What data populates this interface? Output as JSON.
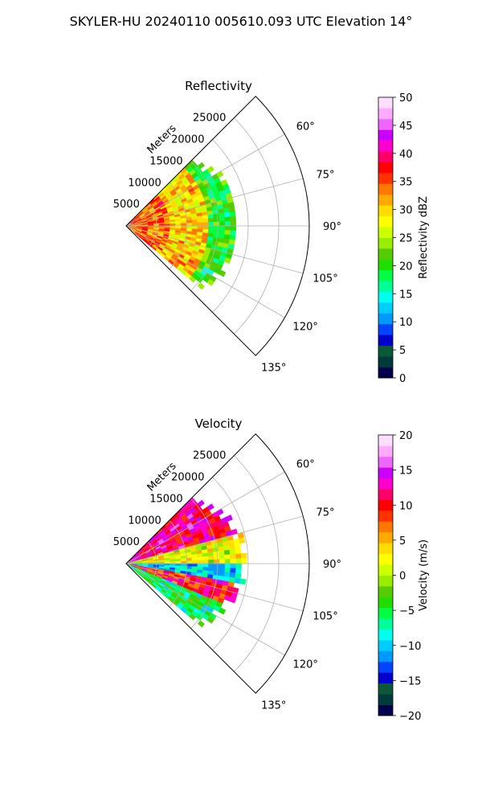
{
  "figure_title": "SKYLER-HU  20240110  005610.093 UTC Elevation 14°",
  "chart_data": [
    {
      "type": "heatmap",
      "projection": "polar-sector",
      "title": "Reflectivity",
      "range_label": "Meters",
      "range_ticks": [
        5000,
        10000,
        15000,
        20000,
        25000
      ],
      "range_tick_labels": [
        "5000",
        "10000",
        "15000",
        "20000",
        "25000"
      ],
      "rmax": 30000,
      "azimuth_range": [
        45,
        135
      ],
      "azimuth_ticks": [
        60,
        75,
        90,
        105,
        120,
        135
      ],
      "azimuth_tick_labels": [
        "60°",
        "75°",
        "90°",
        "105°",
        "120°",
        "135°"
      ],
      "grid": true,
      "colorbar": {
        "label": "Reflectivity dBZ",
        "vmin": 0,
        "vmax": 50,
        "ticks": [
          0,
          5,
          10,
          15,
          20,
          25,
          30,
          35,
          40,
          45,
          50
        ],
        "tick_labels": [
          "0",
          "5",
          "10",
          "15",
          "20",
          "25",
          "30",
          "35",
          "40",
          "45",
          "50"
        ],
        "colors": [
          "#00004d",
          "#003a3a",
          "#0a5a3a",
          "#0000cc",
          "#0044ff",
          "#0099ff",
          "#00ccff",
          "#00ffee",
          "#00ff99",
          "#00ff44",
          "#22dd00",
          "#55cc00",
          "#99ee00",
          "#ccff00",
          "#ffff00",
          "#ffdd00",
          "#ffaa00",
          "#ff7700",
          "#ff3300",
          "#ff0000",
          "#ff0066",
          "#ff00cc",
          "#cc00ff",
          "#ee66ff",
          "#ffaaff",
          "#ffddff"
        ]
      },
      "field_extent": {
        "azimuth_start": 45,
        "azimuth_end": 130,
        "r_max_approx": 18000
      },
      "approx_values_by_range_band": [
        {
          "r": [
            0,
            7000
          ],
          "value": 34
        },
        {
          "r": [
            7000,
            13000
          ],
          "value": 30
        },
        {
          "r": [
            13000,
            18000
          ],
          "value": 20
        }
      ]
    },
    {
      "type": "heatmap",
      "projection": "polar-sector",
      "title": "Velocity",
      "range_label": "Meters",
      "range_ticks": [
        5000,
        10000,
        15000,
        20000,
        25000
      ],
      "range_tick_labels": [
        "5000",
        "10000",
        "15000",
        "20000",
        "25000"
      ],
      "rmax": 30000,
      "azimuth_range": [
        45,
        135
      ],
      "azimuth_ticks": [
        60,
        75,
        90,
        105,
        120,
        135
      ],
      "azimuth_tick_labels": [
        "60°",
        "75°",
        "90°",
        "105°",
        "120°",
        "135°"
      ],
      "grid": true,
      "colorbar": {
        "label": "Velocity (m/s)",
        "vmin": -20,
        "vmax": 20,
        "ticks": [
          -20,
          -15,
          -10,
          -5,
          0,
          5,
          10,
          15,
          20
        ],
        "tick_labels": [
          "−20",
          "−15",
          "−10",
          "−5",
          "0",
          "5",
          "10",
          "15",
          "20"
        ],
        "colors": [
          "#00004d",
          "#003a3a",
          "#0a5a3a",
          "#0000cc",
          "#0044ff",
          "#0099ff",
          "#00ccff",
          "#00ffee",
          "#00ff99",
          "#00ff44",
          "#22dd00",
          "#55cc00",
          "#99ee00",
          "#ccff00",
          "#ffff00",
          "#ffdd00",
          "#ffaa00",
          "#ff7700",
          "#ff3300",
          "#ff0000",
          "#ff0066",
          "#ff00cc",
          "#cc00ff",
          "#ee66ff",
          "#ffaaff",
          "#ffddff"
        ]
      },
      "field_extent": {
        "azimuth_start": 45,
        "azimuth_end": 130,
        "r_max_approx": 18000
      },
      "approx_values_by_azimuth_band": [
        {
          "az": [
            45,
            75
          ],
          "value": 12
        },
        {
          "az": [
            75,
            90
          ],
          "value": 2
        },
        {
          "az": [
            90,
            100
          ],
          "value": -10
        },
        {
          "az": [
            100,
            112
          ],
          "value": 10
        },
        {
          "az": [
            112,
            130
          ],
          "value": -6
        }
      ]
    }
  ]
}
